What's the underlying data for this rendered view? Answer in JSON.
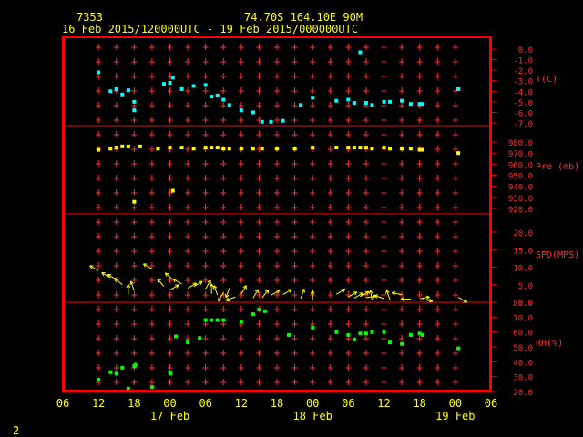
{
  "header": {
    "station_id": "7353",
    "location": "74.70S  164.10E    90M",
    "time_range": "16 Feb 2015/120000UTC - 19 Feb 2015/000000UTC"
  },
  "footer": {
    "page_number": "2"
  },
  "x_axis": {
    "tick_labels": [
      "06",
      "12",
      "18",
      "00",
      "06",
      "12",
      "18",
      "00",
      "06",
      "12",
      "18",
      "00",
      "06"
    ],
    "tick_hours": [
      6,
      12,
      18,
      24,
      30,
      36,
      42,
      48,
      54,
      60,
      66,
      72,
      78
    ],
    "date_labels": [
      {
        "label": "17 Feb",
        "hour": 24
      },
      {
        "label": "18 Feb",
        "hour": 48
      },
      {
        "label": "19 Feb",
        "hour": 72
      }
    ],
    "range": [
      6,
      78
    ],
    "vertical_grid_hours": [
      12,
      15,
      18,
      21,
      24,
      27,
      30,
      33,
      36,
      39,
      42,
      45,
      48,
      51,
      54,
      57,
      60,
      63,
      66,
      69,
      72
    ]
  },
  "colors": {
    "frame": "#ff0000",
    "grid": "#ff3030",
    "text": "#ffff00",
    "axis_labels": "#ff3030",
    "temperature": "#00ffff",
    "pressure": "#ffff00",
    "wind": "#ffff00",
    "humidity": "#00ff00"
  },
  "chart_data": [
    {
      "type": "scatter",
      "ylabel": "T(C)",
      "ylim": [
        -7,
        0
      ],
      "yticks": [
        "0.0",
        "-1.0",
        "-2.0",
        "-3.0",
        "-4.0",
        "-5.0",
        "-6.0",
        "-7.0"
      ],
      "ytick_values": [
        0,
        -1,
        -2,
        -3,
        -4,
        -5,
        -6,
        -7
      ],
      "x": [
        12,
        14,
        15,
        16,
        17,
        18,
        18,
        23,
        24,
        24.5,
        26,
        28,
        30,
        31,
        32,
        33,
        34,
        36,
        38,
        39.5,
        41,
        43,
        46,
        48,
        52,
        54,
        55,
        56,
        57,
        58,
        60,
        61,
        63,
        64.5,
        66,
        66.5,
        72.5
      ],
      "values": [
        -2.2,
        -4.0,
        -3.8,
        -4.3,
        -3.9,
        -5.0,
        -5.8,
        -3.3,
        -3.2,
        -2.7,
        -3.8,
        -3.5,
        -3.4,
        -4.5,
        -4.4,
        -4.8,
        -5.3,
        -5.8,
        -6.0,
        -6.9,
        -6.9,
        -6.8,
        -5.3,
        -4.6,
        -4.9,
        -4.8,
        -5.1,
        -0.3,
        -5.1,
        -5.3,
        -5.0,
        -5.0,
        -4.9,
        -5.2,
        -5.2,
        -5.2,
        -3.8
      ]
    },
    {
      "type": "scatter",
      "ylabel": "Pre (mb)",
      "ylim": [
        920,
        980
      ],
      "yticks": [
        "980.0",
        "970.0",
        "960.0",
        "950.0",
        "940.0",
        "930.0",
        "920.0"
      ],
      "ytick_values": [
        980,
        970,
        960,
        950,
        940,
        930,
        920
      ],
      "x": [
        12,
        14,
        15,
        16,
        17,
        18,
        19,
        22,
        24,
        24.5,
        26,
        28,
        30,
        31,
        32,
        33,
        34,
        36,
        38,
        39.5,
        42,
        45,
        48,
        52,
        54,
        55,
        56,
        57,
        58,
        60,
        61,
        63,
        64.5,
        66,
        66.5,
        72.5
      ],
      "values": [
        973,
        974,
        975,
        976,
        976,
        926,
        976,
        974,
        975,
        936,
        975,
        974,
        975,
        975,
        975,
        974,
        974,
        974,
        974,
        974,
        974,
        974,
        975,
        975,
        975,
        975,
        975,
        975,
        974,
        975,
        974,
        974,
        974,
        973,
        973,
        970
      ]
    },
    {
      "type": "scatter",
      "ylabel": "SPD(MPS)",
      "ylim": [
        0,
        20
      ],
      "yticks": [
        "20.0",
        "15.0",
        "10.0",
        "5.0",
        "0.0"
      ],
      "ytick_values": [
        20,
        15,
        10,
        5,
        0
      ],
      "x": [
        12,
        14,
        15,
        16,
        17,
        18,
        21,
        23,
        24,
        24.5,
        26,
        27,
        28,
        30,
        31,
        32,
        33,
        34,
        35,
        36,
        38,
        39.5,
        41,
        43,
        46,
        48,
        52,
        54,
        55,
        56,
        57,
        58,
        60,
        61,
        63,
        64.5,
        66,
        66.5,
        72.5
      ],
      "values": [
        9,
        7,
        6.5,
        5,
        2.2,
        3.3,
        9.5,
        4.5,
        3.5,
        6.5,
        5.2,
        4,
        4.5,
        3.8,
        2.4,
        2.1,
        2.8,
        4,
        1.5,
        2.3,
        1.2,
        1.3,
        2,
        2.2,
        1.1,
        0.5,
        2.3,
        1.5,
        1.2,
        1.6,
        1.3,
        0.6,
        1,
        0.8,
        2.2,
        0.9,
        1.0,
        0.8,
        1.4
      ],
      "directions_deg": [
        300,
        300,
        300,
        310,
        0,
        340,
        300,
        320,
        60,
        310,
        300,
        60,
        60,
        30,
        0,
        340,
        210,
        200,
        250,
        30,
        30,
        40,
        60,
        60,
        20,
        0,
        60,
        60,
        60,
        60,
        80,
        350,
        290,
        340,
        280,
        270,
        80,
        100,
        120
      ]
    },
    {
      "type": "scatter",
      "ylabel": "RH(%)",
      "ylim": [
        20,
        80
      ],
      "yticks": [
        "80.0",
        "70.0",
        "60.0",
        "50.0",
        "40.0",
        "30.0",
        "20.0"
      ],
      "ytick_values": [
        80,
        70,
        60,
        50,
        40,
        30,
        20
      ],
      "x": [
        12,
        14,
        15,
        16,
        17,
        18,
        18.2,
        21,
        24,
        24.1,
        25,
        27,
        29,
        30,
        31,
        32,
        33,
        36,
        38,
        39,
        40,
        44,
        48,
        52,
        54,
        55,
        56,
        57,
        58,
        60,
        61,
        63,
        64.5,
        66,
        66.5,
        72.5
      ],
      "values": [
        28,
        33,
        32,
        36,
        22,
        37,
        38,
        23,
        33,
        32,
        57,
        53,
        56,
        68,
        68,
        68,
        68,
        67,
        72,
        75,
        74,
        58,
        63,
        60,
        58,
        55,
        59,
        59,
        60,
        60,
        53,
        52,
        58,
        59,
        58,
        49
      ]
    }
  ]
}
